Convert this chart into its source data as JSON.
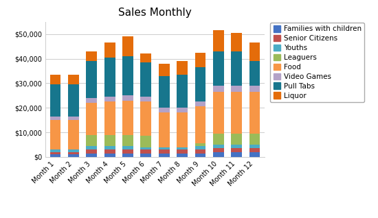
{
  "categories": [
    "Month 1",
    "Month 2",
    "Month 3",
    "Month 4",
    "Month 5",
    "Month 6",
    "Month 7",
    "Month 8",
    "Month 9",
    "Month 10",
    "Month 11",
    "Month 12"
  ],
  "series": [
    {
      "name": "Families with children",
      "color": "#4472C4",
      "values": [
        1000,
        1000,
        1500,
        1500,
        1500,
        1500,
        1500,
        1500,
        1500,
        2000,
        2000,
        2000
      ]
    },
    {
      "name": "Senior Citizens",
      "color": "#C0504D",
      "values": [
        1000,
        1000,
        1500,
        1500,
        1500,
        1500,
        1500,
        1500,
        1500,
        1500,
        1500,
        1500
      ]
    },
    {
      "name": "Youths",
      "color": "#4BACC6",
      "values": [
        1000,
        1000,
        1500,
        1500,
        1500,
        1000,
        1000,
        1000,
        1500,
        1500,
        1500,
        1500
      ]
    },
    {
      "name": "Leaguers",
      "color": "#9BBB59",
      "values": [
        0,
        0,
        4500,
        4500,
        4500,
        4500,
        0,
        0,
        1000,
        4500,
        4500,
        4500
      ]
    },
    {
      "name": "Food",
      "color": "#F79646",
      "values": [
        12000,
        12000,
        13000,
        13500,
        14000,
        14000,
        14000,
        14000,
        15000,
        17000,
        17000,
        17000
      ]
    },
    {
      "name": "Video Games",
      "color": "#B3A2C7",
      "values": [
        1500,
        1500,
        2000,
        2000,
        2000,
        2000,
        2000,
        2000,
        2000,
        2500,
        2500,
        2500
      ]
    },
    {
      "name": "Pull Tabs",
      "color": "#17768D",
      "values": [
        13000,
        13000,
        15000,
        16000,
        16000,
        14000,
        13000,
        13500,
        14000,
        14000,
        14000,
        10000
      ]
    },
    {
      "name": "Liquor",
      "color": "#E46C0A",
      "values": [
        4000,
        4000,
        4000,
        6000,
        8000,
        3500,
        5000,
        5500,
        6000,
        8500,
        7500,
        7500
      ]
    }
  ],
  "title": "Sales Monthly",
  "ylim": [
    0,
    55000
  ],
  "yticks": [
    0,
    10000,
    20000,
    30000,
    40000,
    50000
  ],
  "background_color": "#FFFFFF",
  "plot_bg_color": "#FFFFFF",
  "grid_color": "#CCCCCC",
  "title_fontsize": 11,
  "legend_fontsize": 7.5,
  "tick_fontsize": 7,
  "bar_width": 0.6
}
